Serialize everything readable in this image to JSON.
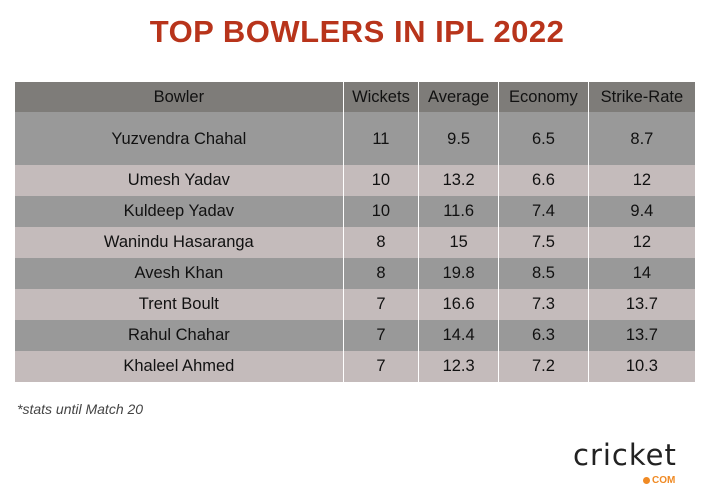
{
  "title": "TOP BOWLERS IN IPL 2022",
  "columns": [
    "Bowler",
    "Wickets",
    "Average",
    "Economy",
    "Strike-Rate"
  ],
  "rows": [
    [
      "Yuzvendra Chahal",
      "11",
      "9.5",
      "6.5",
      "8.7"
    ],
    [
      "Umesh Yadav",
      "10",
      "13.2",
      "6.6",
      "12"
    ],
    [
      "Kuldeep Yadav",
      "10",
      "11.6",
      "7.4",
      "9.4"
    ],
    [
      "Wanindu Hasaranga",
      "8",
      "15",
      "7.5",
      "12"
    ],
    [
      "Avesh Khan",
      "8",
      "19.8",
      "8.5",
      "14"
    ],
    [
      "Trent Boult",
      "7",
      "16.6",
      "7.3",
      "13.7"
    ],
    [
      "Rahul Chahar",
      "7",
      "14.4",
      "6.3",
      "13.7"
    ],
    [
      "Khaleel Ahmed",
      "7",
      "12.3",
      "7.2",
      "10.3"
    ]
  ],
  "note": "*stats until Match 20",
  "logo": {
    "text": "cricket",
    "suffix": "COM"
  },
  "colors": {
    "title": "#b8341b",
    "header": "#7e7c79",
    "row_dark": "#999999",
    "row_light": "#c4bbbb"
  }
}
